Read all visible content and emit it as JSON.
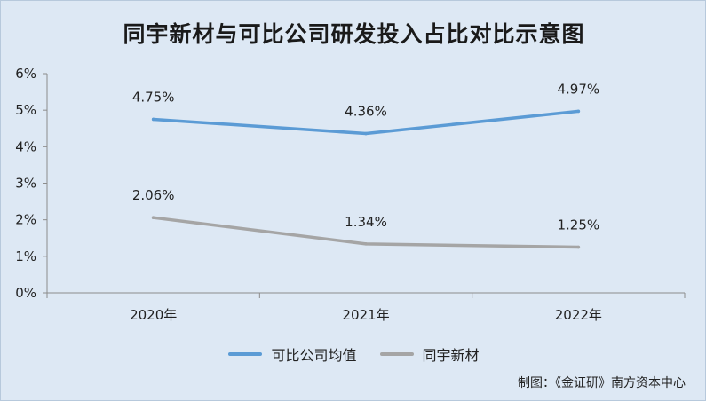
{
  "title": "同宇新材与可比公司研发投入占比对比示意图",
  "source": "制图：《金证研》南方资本中心",
  "chart_data": {
    "type": "line",
    "title": "同宇新材与可比公司研发投入占比对比示意图",
    "categories": [
      "2020年",
      "2021年",
      "2022年"
    ],
    "ylim": [
      0,
      6
    ],
    "yticks": [
      "0%",
      "1%",
      "2%",
      "3%",
      "4%",
      "5%",
      "6%"
    ],
    "grid": false,
    "legend": "bottom",
    "series": [
      {
        "name": "可比公司均值",
        "values": [
          4.75,
          4.36,
          4.97
        ],
        "labels": [
          "4.75%",
          "4.36%",
          "4.97%"
        ],
        "color": "#5b9bd5"
      },
      {
        "name": "同宇新材",
        "values": [
          2.06,
          1.34,
          1.25
        ],
        "labels": [
          "2.06%",
          "1.34%",
          "1.25%"
        ],
        "color": "#a5a5a5"
      }
    ]
  }
}
